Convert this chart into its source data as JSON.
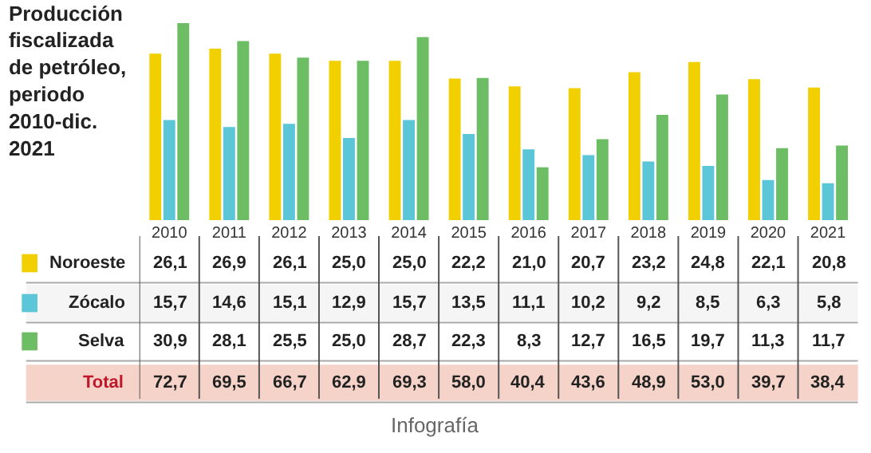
{
  "chart_data": {
    "type": "bar",
    "title": "Producción\nfiscalizada\nde petróleo,\nperiodo\n2010-dic.\n2021",
    "categories": [
      "2010",
      "2011",
      "2012",
      "2013",
      "2014",
      "2015",
      "2016",
      "2017",
      "2018",
      "2019",
      "2020",
      "2021"
    ],
    "series": [
      {
        "name": "Noroeste",
        "color": "#f2d000",
        "values": [
          26.1,
          26.9,
          26.1,
          25.0,
          25.0,
          22.2,
          21.0,
          20.7,
          23.2,
          24.8,
          22.1,
          20.8
        ],
        "value_labels": [
          "26,1",
          "26,9",
          "26,1",
          "25,0",
          "25,0",
          "22,2",
          "21,0",
          "20,7",
          "23,2",
          "24,8",
          "22,1",
          "20,8"
        ]
      },
      {
        "name": "Zócalo",
        "color": "#5ac6d8",
        "values": [
          15.7,
          14.6,
          15.1,
          12.9,
          15.7,
          13.5,
          11.1,
          10.2,
          9.2,
          8.5,
          6.3,
          5.8
        ],
        "value_labels": [
          "15,7",
          "14,6",
          "15,1",
          "12,9",
          "15,7",
          "13,5",
          "11,1",
          "10,2",
          "9,2",
          "8,5",
          "6,3",
          "5,8"
        ]
      },
      {
        "name": "Selva",
        "color": "#6cbd63",
        "values": [
          30.9,
          28.1,
          25.5,
          25.0,
          28.7,
          22.3,
          8.3,
          12.7,
          16.5,
          19.7,
          11.3,
          11.7
        ],
        "value_labels": [
          "30,9",
          "28,1",
          "25,5",
          "25,0",
          "28,7",
          "22,3",
          "8,3",
          "12,7",
          "16,5",
          "19,7",
          "11,3",
          "11,7"
        ]
      }
    ],
    "annotations": [
      "Total",
      "72,7",
      "69,5",
      "66,7",
      "62,9",
      "69,3",
      "58,0",
      "40,4",
      "43,6",
      "48,9",
      "53,0",
      "39,7",
      "38,4",
      "Infografía"
    ],
    "legend": "bottom left"
  }
}
